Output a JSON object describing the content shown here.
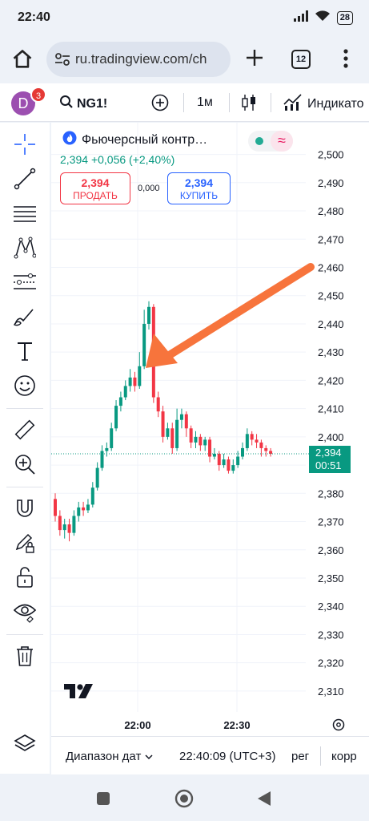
{
  "status": {
    "time": "22:40",
    "battery": "28"
  },
  "browser": {
    "url": "ru.tradingview.com/ch",
    "tab_count": "12"
  },
  "toolbar": {
    "avatar_letter": "D",
    "notifications": "3",
    "symbol": "NG1!",
    "interval": "1м",
    "indicators_label": "Индикато"
  },
  "legend": {
    "title": "Фьючерсный контр…",
    "price": "2,394",
    "change": "+0,056 (+2,40%)",
    "sell_price": "2,394",
    "sell_label": "ПРОДАТЬ",
    "spread": "0,000",
    "buy_price": "2,394",
    "buy_label": "КУПИТЬ"
  },
  "price_tag": {
    "value": "2,394",
    "countdown": "00:51"
  },
  "bottom": {
    "range_label": "Диапазон дат",
    "clock": "22:40:09 (UTC+3)",
    "reg": "рег",
    "corr": "корр"
  },
  "colors": {
    "up": "#089981",
    "down": "#f23645",
    "accent": "#2962ff",
    "arrow": "#f7743c"
  },
  "chart_data": {
    "type": "candlestick",
    "y_ticks": [
      "2,500",
      "2,490",
      "2,480",
      "2,470",
      "2,460",
      "2,450",
      "2,440",
      "2,430",
      "2,420",
      "2,410",
      "2,400",
      "2,390",
      "2,380",
      "2,370",
      "2,360",
      "2,350",
      "2,340",
      "2,330",
      "2,320",
      "2,310"
    ],
    "x_ticks": [
      "22:00",
      "22:30"
    ],
    "ylim": [
      2.306,
      2.503
    ],
    "last_price": 2.394,
    "candles": [
      [
        2.378,
        2.372,
        2.38,
        2.37
      ],
      [
        2.372,
        2.367,
        2.374,
        2.365
      ],
      [
        2.367,
        2.369,
        2.371,
        2.364
      ],
      [
        2.369,
        2.366,
        2.371,
        2.363
      ],
      [
        2.366,
        2.372,
        2.374,
        2.365
      ],
      [
        2.372,
        2.375,
        2.377,
        2.37
      ],
      [
        2.375,
        2.374,
        2.377,
        2.372
      ],
      [
        2.374,
        2.376,
        2.378,
        2.373
      ],
      [
        2.376,
        2.382,
        2.384,
        2.375
      ],
      [
        2.382,
        2.389,
        2.391,
        2.381
      ],
      [
        2.389,
        2.395,
        2.397,
        2.388
      ],
      [
        2.395,
        2.396,
        2.398,
        2.393
      ],
      [
        2.396,
        2.403,
        2.405,
        2.395
      ],
      [
        2.403,
        2.411,
        2.413,
        2.402
      ],
      [
        2.411,
        2.414,
        2.416,
        2.409
      ],
      [
        2.414,
        2.418,
        2.42,
        2.413
      ],
      [
        2.418,
        2.421,
        2.424,
        2.416
      ],
      [
        2.421,
        2.418,
        2.423,
        2.416
      ],
      [
        2.418,
        2.425,
        2.43,
        2.417
      ],
      [
        2.425,
        2.44,
        2.445,
        2.424
      ],
      [
        2.44,
        2.446,
        2.448,
        2.438
      ],
      [
        2.446,
        2.414,
        2.447,
        2.412
      ],
      [
        2.414,
        2.409,
        2.416,
        2.407
      ],
      [
        2.409,
        2.4,
        2.411,
        2.398
      ],
      [
        2.4,
        2.403,
        2.405,
        2.399
      ],
      [
        2.403,
        2.396,
        2.405,
        2.394
      ],
      [
        2.396,
        2.406,
        2.41,
        2.395
      ],
      [
        2.406,
        2.408,
        2.41,
        2.403
      ],
      [
        2.408,
        2.403,
        2.409,
        2.4
      ],
      [
        2.403,
        2.398,
        2.404,
        2.396
      ],
      [
        2.398,
        2.4,
        2.402,
        2.396
      ],
      [
        2.4,
        2.397,
        2.401,
        2.395
      ],
      [
        2.397,
        2.399,
        2.4,
        2.395
      ],
      [
        2.399,
        2.393,
        2.4,
        2.391
      ],
      [
        2.393,
        2.394,
        2.396,
        2.392
      ],
      [
        2.394,
        2.39,
        2.395,
        2.388
      ],
      [
        2.39,
        2.392,
        2.394,
        2.389
      ],
      [
        2.392,
        2.388,
        2.393,
        2.387
      ],
      [
        2.388,
        2.39,
        2.392,
        2.387
      ],
      [
        2.39,
        2.393,
        2.395,
        2.389
      ],
      [
        2.393,
        2.396,
        2.398,
        2.392
      ],
      [
        2.396,
        2.401,
        2.403,
        2.395
      ],
      [
        2.401,
        2.399,
        2.402,
        2.397
      ],
      [
        2.399,
        2.398,
        2.401,
        2.396
      ],
      [
        2.398,
        2.396,
        2.399,
        2.393
      ],
      [
        2.396,
        2.395,
        2.397,
        2.393
      ],
      [
        2.395,
        2.394,
        2.396,
        2.393
      ]
    ]
  }
}
